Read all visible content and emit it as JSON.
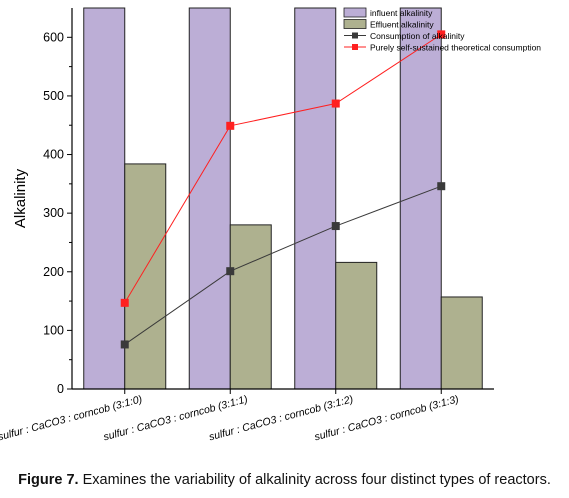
{
  "chart_data": {
    "type": "bar",
    "ylabel": "Alkalinity",
    "xlabel": "",
    "ylim": [
      0,
      650
    ],
    "yticks": [
      0,
      100,
      200,
      300,
      400,
      500,
      600
    ],
    "categories": [
      "sulfur : CaCO3 : corncob (3:1:0)",
      "sulfur : CaCO3 : corncob (3:1:1)",
      "sulfur : CaCO3 : corncob (3:1:2)",
      "sulfur : CaCO3 : corncob (3:1:3)"
    ],
    "series": [
      {
        "name": "influent alkalinity",
        "kind": "bar",
        "color": "#bcaed6",
        "values": [
          650,
          650,
          650,
          650
        ]
      },
      {
        "name": "Effluent alkalinity",
        "kind": "bar",
        "color": "#aeb18f",
        "values": [
          384,
          280,
          216,
          157
        ]
      },
      {
        "name": "Consumption of alkalinity",
        "kind": "line",
        "color": "#3a3a3a",
        "values": [
          76,
          201,
          278,
          346
        ]
      },
      {
        "name": "Purely self-sustained theoretical consumption",
        "kind": "line",
        "color": "#ff2020",
        "values": [
          147,
          449,
          487,
          605
        ]
      }
    ],
    "legend_position": "top-right",
    "grid": false
  },
  "caption": {
    "label": "Figure 7.",
    "text": " Examines the variability of alkalinity across four distinct types of reactors."
  }
}
